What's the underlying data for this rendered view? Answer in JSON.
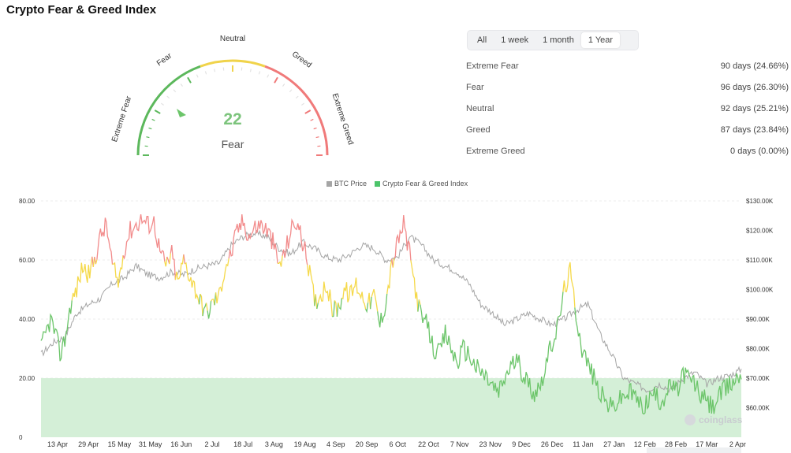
{
  "page": {
    "title": "Crypto Fear & Greed Index",
    "watermark": "coinglass"
  },
  "gauge": {
    "value": "22",
    "label": "Fear",
    "ticks": {
      "extreme_fear": "Extreme Fear",
      "fear": "Fear",
      "neutral": "Neutral",
      "greed": "Greed",
      "extreme_greed": "Extreme Greed"
    },
    "colors": {
      "fear": "#5cb85c",
      "neutral": "#f0d34a",
      "greed": "#f07a7a",
      "value": "#7cc47c",
      "tick_faint": "#e3e3e3"
    }
  },
  "tabs": [
    {
      "label": "All",
      "active": false
    },
    {
      "label": "1 week",
      "active": false
    },
    {
      "label": "1 month",
      "active": false
    },
    {
      "label": "1 Year",
      "active": true
    }
  ],
  "stats": [
    {
      "label": "Extreme Fear",
      "value": "90 days (24.66%)"
    },
    {
      "label": "Fear",
      "value": "96 days (26.30%)"
    },
    {
      "label": "Neutral",
      "value": "92 days (25.21%)"
    },
    {
      "label": "Greed",
      "value": "87 days (23.84%)"
    },
    {
      "label": "Extreme Greed",
      "value": "0 days (0.00%)"
    }
  ],
  "chart_data": {
    "type": "line",
    "legend": [
      {
        "name": "BTC Price",
        "color": "#a5a5a5"
      },
      {
        "name": "Crypto Fear & Greed Index",
        "color": "#4cc46a"
      }
    ],
    "x_labels": [
      "13 Apr",
      "29 Apr",
      "15 May",
      "31 May",
      "16 Jun",
      "2 Jul",
      "18 Jul",
      "3 Aug",
      "19 Aug",
      "4 Sep",
      "20 Sep",
      "6 Oct",
      "22 Oct",
      "7 Nov",
      "23 Nov",
      "9 Dec",
      "26 Dec",
      "11 Jan",
      "27 Jan",
      "12 Feb",
      "28 Feb",
      "17 Mar",
      "2 Apr"
    ],
    "y_left": {
      "min": 0,
      "max": 80,
      "ticks": [
        0,
        20,
        40,
        60,
        80
      ],
      "tick_labels": [
        "0",
        "20.00",
        "40.00",
        "60.00",
        "80.00"
      ]
    },
    "y_right": {
      "min": 50000,
      "max": 130000,
      "ticks": [
        60000,
        70000,
        80000,
        90000,
        100000,
        110000,
        120000,
        130000
      ],
      "tick_labels": [
        "$60.00K",
        "$70.00K",
        "$80.00K",
        "$90.00K",
        "$100.00K",
        "$110.00K",
        "$120.00K",
        "$130.00K"
      ]
    },
    "fear_band": {
      "from": 0,
      "to": 20,
      "color": "#d4efd7"
    },
    "zone_colors": {
      "fear": "#6cc56a",
      "neutral": "#f5d94a",
      "greed": "#f28b8b"
    },
    "fgi_anchors": [
      [
        0,
        30
      ],
      [
        4,
        35
      ],
      [
        8,
        40
      ],
      [
        12,
        35
      ],
      [
        16,
        28
      ],
      [
        20,
        33
      ],
      [
        25,
        45
      ],
      [
        30,
        50
      ],
      [
        35,
        58
      ],
      [
        40,
        55
      ],
      [
        45,
        60
      ],
      [
        50,
        68
      ],
      [
        55,
        72
      ],
      [
        60,
        58
      ],
      [
        65,
        52
      ],
      [
        70,
        64
      ],
      [
        75,
        70
      ],
      [
        80,
        72
      ],
      [
        85,
        74
      ],
      [
        90,
        72
      ],
      [
        95,
        73
      ],
      [
        100,
        63
      ],
      [
        105,
        58
      ],
      [
        110,
        62
      ],
      [
        115,
        52
      ],
      [
        120,
        60
      ],
      [
        125,
        55
      ],
      [
        130,
        50
      ],
      [
        135,
        45
      ],
      [
        140,
        42
      ],
      [
        145,
        46
      ],
      [
        150,
        48
      ],
      [
        155,
        58
      ],
      [
        160,
        62
      ],
      [
        165,
        70
      ],
      [
        170,
        73
      ],
      [
        175,
        68
      ],
      [
        180,
        71
      ],
      [
        185,
        72
      ],
      [
        190,
        70
      ],
      [
        195,
        66
      ],
      [
        200,
        58
      ],
      [
        205,
        62
      ],
      [
        210,
        70
      ],
      [
        215,
        73
      ],
      [
        220,
        66
      ],
      [
        225,
        58
      ],
      [
        230,
        46
      ],
      [
        235,
        48
      ],
      [
        240,
        52
      ],
      [
        245,
        43
      ],
      [
        250,
        44
      ],
      [
        255,
        50
      ],
      [
        260,
        48
      ],
      [
        265,
        52
      ],
      [
        270,
        48
      ],
      [
        275,
        45
      ],
      [
        280,
        48
      ],
      [
        285,
        38
      ],
      [
        290,
        46
      ],
      [
        295,
        58
      ],
      [
        300,
        66
      ],
      [
        305,
        72
      ],
      [
        310,
        62
      ],
      [
        315,
        50
      ],
      [
        320,
        40
      ],
      [
        325,
        38
      ],
      [
        330,
        30
      ],
      [
        335,
        28
      ],
      [
        340,
        35
      ],
      [
        345,
        30
      ],
      [
        350,
        25
      ],
      [
        355,
        30
      ],
      [
        360,
        28
      ],
      [
        365,
        24
      ],
      [
        370,
        22
      ],
      [
        375,
        20
      ],
      [
        380,
        17
      ],
      [
        385,
        15
      ],
      [
        390,
        20
      ],
      [
        395,
        24
      ],
      [
        400,
        26
      ],
      [
        405,
        22
      ],
      [
        410,
        18
      ],
      [
        415,
        15
      ],
      [
        420,
        18
      ],
      [
        425,
        25
      ],
      [
        430,
        32
      ],
      [
        435,
        38
      ],
      [
        440,
        50
      ],
      [
        445,
        56
      ],
      [
        450,
        42
      ],
      [
        455,
        30
      ],
      [
        460,
        25
      ],
      [
        465,
        20
      ],
      [
        470,
        15
      ],
      [
        475,
        12
      ],
      [
        480,
        10
      ],
      [
        485,
        12
      ],
      [
        490,
        14
      ],
      [
        495,
        15
      ],
      [
        500,
        14
      ],
      [
        505,
        10
      ],
      [
        510,
        12
      ],
      [
        515,
        15
      ],
      [
        520,
        12
      ],
      [
        525,
        14
      ],
      [
        530,
        18
      ],
      [
        535,
        15
      ],
      [
        540,
        22
      ],
      [
        545,
        20
      ],
      [
        550,
        18
      ],
      [
        555,
        14
      ],
      [
        560,
        12
      ],
      [
        565,
        10
      ],
      [
        570,
        14
      ],
      [
        575,
        16
      ],
      [
        580,
        18
      ],
      [
        585,
        20
      ],
      [
        589,
        21
      ]
    ],
    "btc_anchors": [
      [
        0,
        78000
      ],
      [
        10,
        82000
      ],
      [
        20,
        84000
      ],
      [
        30,
        92000
      ],
      [
        40,
        95000
      ],
      [
        50,
        97000
      ],
      [
        60,
        102000
      ],
      [
        70,
        104000
      ],
      [
        80,
        108000
      ],
      [
        90,
        105000
      ],
      [
        100,
        104000
      ],
      [
        110,
        106000
      ],
      [
        120,
        105000
      ],
      [
        130,
        107000
      ],
      [
        140,
        108000
      ],
      [
        150,
        109000
      ],
      [
        160,
        115000
      ],
      [
        170,
        118000
      ],
      [
        180,
        119000
      ],
      [
        190,
        118000
      ],
      [
        200,
        114000
      ],
      [
        210,
        112000
      ],
      [
        220,
        116000
      ],
      [
        230,
        114000
      ],
      [
        240,
        111000
      ],
      [
        250,
        110000
      ],
      [
        260,
        112000
      ],
      [
        270,
        115000
      ],
      [
        280,
        114000
      ],
      [
        290,
        110000
      ],
      [
        300,
        111000
      ],
      [
        310,
        118000
      ],
      [
        320,
        115000
      ],
      [
        330,
        110000
      ],
      [
        340,
        108000
      ],
      [
        350,
        106000
      ],
      [
        360,
        102000
      ],
      [
        370,
        95000
      ],
      [
        380,
        92000
      ],
      [
        390,
        88000
      ],
      [
        400,
        90000
      ],
      [
        410,
        92000
      ],
      [
        420,
        90000
      ],
      [
        430,
        88000
      ],
      [
        440,
        90000
      ],
      [
        450,
        93000
      ],
      [
        460,
        95000
      ],
      [
        470,
        85000
      ],
      [
        480,
        78000
      ],
      [
        490,
        70000
      ],
      [
        500,
        68000
      ],
      [
        510,
        66000
      ],
      [
        520,
        68000
      ],
      [
        530,
        66000
      ],
      [
        540,
        70000
      ],
      [
        550,
        72000
      ],
      [
        560,
        68000
      ],
      [
        570,
        70000
      ],
      [
        580,
        71000
      ],
      [
        589,
        73000
      ]
    ]
  }
}
